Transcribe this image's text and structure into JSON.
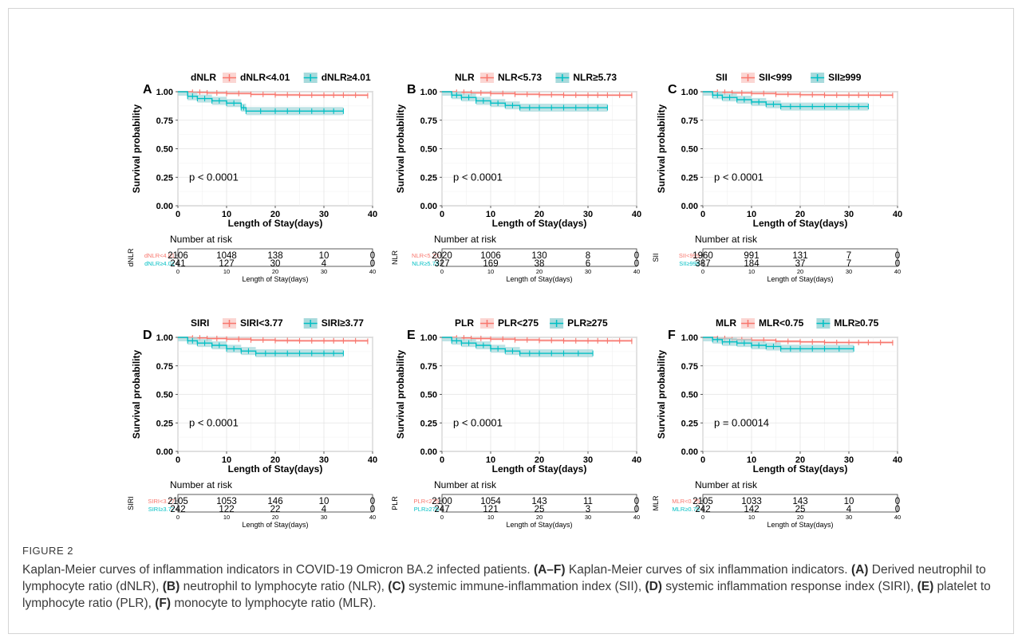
{
  "colors": {
    "group1": "#F8766D",
    "group2": "#00BFC4",
    "group2_fill": "#A8DADC"
  },
  "chart_data": [
    {
      "panel": "A",
      "type": "line",
      "legend_title": "dNLR",
      "series": [
        {
          "name": "dNLR<4.01",
          "x": [
            0,
            3,
            6,
            10,
            15,
            20,
            25,
            30,
            34,
            39
          ],
          "y": [
            1.0,
            0.995,
            0.99,
            0.985,
            0.977,
            0.972,
            0.97,
            0.97,
            0.97,
            0.965
          ]
        },
        {
          "name": "dNLR≥4.01",
          "x": [
            0,
            2,
            4,
            7,
            10,
            13,
            14,
            20,
            25,
            30,
            34
          ],
          "y": [
            1.0,
            0.96,
            0.94,
            0.92,
            0.9,
            0.86,
            0.83,
            0.83,
            0.83,
            0.83,
            0.83
          ]
        }
      ],
      "p_value": "p < 0.0001",
      "xlabel": "Length of Stay(days)",
      "ylabel": "Survival probability",
      "xlim": [
        0,
        40
      ],
      "ylim": [
        0,
        1
      ],
      "xticks": [
        "0",
        "10",
        "20",
        "30",
        "40"
      ],
      "yticks": [
        "0.00",
        "0.25",
        "0.50",
        "0.75",
        "1.00"
      ],
      "risk_table": {
        "title": "Number at risk",
        "ylabel": "dNLR",
        "rows": [
          {
            "label": "dNLR<4.01",
            "values": [
              "2106",
              "1048",
              "138",
              "10",
              "0"
            ]
          },
          {
            "label": "dNLR≥4.01",
            "values": [
              "241",
              "127",
              "30",
              "4",
              "0"
            ]
          }
        ],
        "xlabel": "Length of Stay(days)",
        "xticks": [
          "0",
          "10",
          "20",
          "30",
          "40"
        ]
      }
    },
    {
      "panel": "B",
      "type": "line",
      "legend_title": "NLR",
      "series": [
        {
          "name": "NLR<5.73",
          "x": [
            0,
            3,
            6,
            10,
            15,
            20,
            25,
            30,
            34,
            39
          ],
          "y": [
            1.0,
            0.995,
            0.99,
            0.985,
            0.978,
            0.973,
            0.97,
            0.97,
            0.97,
            0.967
          ]
        },
        {
          "name": "NLR≥5.73",
          "x": [
            0,
            2,
            4,
            7,
            10,
            13,
            16,
            20,
            25,
            30,
            34
          ],
          "y": [
            1.0,
            0.97,
            0.95,
            0.92,
            0.9,
            0.88,
            0.86,
            0.86,
            0.86,
            0.86,
            0.86
          ]
        }
      ],
      "p_value": "p < 0.0001",
      "xlabel": "Length of Stay(days)",
      "ylabel": "Survival probability",
      "xlim": [
        0,
        40
      ],
      "ylim": [
        0,
        1
      ],
      "xticks": [
        "0",
        "10",
        "20",
        "30",
        "40"
      ],
      "yticks": [
        "0.00",
        "0.25",
        "0.50",
        "0.75",
        "1.00"
      ],
      "risk_table": {
        "title": "Number at risk",
        "ylabel": "NLR",
        "rows": [
          {
            "label": "NLR<5.73",
            "values": [
              "2020",
              "1006",
              "130",
              "8",
              "0"
            ]
          },
          {
            "label": "NLR≥5.73",
            "values": [
              "327",
              "169",
              "38",
              "6",
              "0"
            ]
          }
        ],
        "xlabel": "Length of Stay(days)",
        "xticks": [
          "0",
          "10",
          "20",
          "30",
          "40"
        ]
      }
    },
    {
      "panel": "C",
      "type": "line",
      "legend_title": "SII",
      "series": [
        {
          "name": "SII<999",
          "x": [
            0,
            3,
            6,
            10,
            15,
            20,
            25,
            30,
            34,
            39
          ],
          "y": [
            1.0,
            0.995,
            0.99,
            0.985,
            0.978,
            0.973,
            0.97,
            0.97,
            0.97,
            0.967
          ]
        },
        {
          "name": "SII≥999",
          "x": [
            0,
            2,
            4,
            7,
            10,
            13,
            16,
            20,
            25,
            30,
            34
          ],
          "y": [
            1.0,
            0.97,
            0.95,
            0.93,
            0.91,
            0.89,
            0.87,
            0.87,
            0.87,
            0.87,
            0.87
          ]
        }
      ],
      "p_value": "p < 0.0001",
      "xlabel": "Length of Stay(days)",
      "ylabel": "Survival probability",
      "xlim": [
        0,
        40
      ],
      "ylim": [
        0,
        1
      ],
      "xticks": [
        "0",
        "10",
        "20",
        "30",
        "40"
      ],
      "yticks": [
        "0.00",
        "0.25",
        "0.50",
        "0.75",
        "1.00"
      ],
      "risk_table": {
        "title": "Number at risk",
        "ylabel": "SII",
        "rows": [
          {
            "label": "SII<999",
            "values": [
              "1960",
              "991",
              "131",
              "7",
              "0"
            ]
          },
          {
            "label": "SII≥999",
            "values": [
              "387",
              "184",
              "37",
              "7",
              "0"
            ]
          }
        ],
        "xlabel": "Length of Stay(days)",
        "xticks": [
          "0",
          "10",
          "20",
          "30",
          "40"
        ]
      }
    },
    {
      "panel": "D",
      "type": "line",
      "legend_title": "SIRI",
      "series": [
        {
          "name": "SIRI<3.77",
          "x": [
            0,
            3,
            6,
            10,
            15,
            20,
            25,
            30,
            34,
            39
          ],
          "y": [
            1.0,
            0.995,
            0.99,
            0.985,
            0.977,
            0.972,
            0.97,
            0.97,
            0.97,
            0.965
          ]
        },
        {
          "name": "SIRI≥3.77",
          "x": [
            0,
            2,
            4,
            7,
            10,
            13,
            16,
            20,
            25,
            30,
            34
          ],
          "y": [
            1.0,
            0.97,
            0.95,
            0.93,
            0.9,
            0.88,
            0.86,
            0.86,
            0.86,
            0.86,
            0.86
          ]
        }
      ],
      "p_value": "p < 0.0001",
      "xlabel": "Length of Stay(days)",
      "ylabel": "Survival probability",
      "xlim": [
        0,
        40
      ],
      "ylim": [
        0,
        1
      ],
      "xticks": [
        "0",
        "10",
        "20",
        "30",
        "40"
      ],
      "yticks": [
        "0.00",
        "0.25",
        "0.50",
        "0.75",
        "1.00"
      ],
      "risk_table": {
        "title": "Number at risk",
        "ylabel": "SIRI",
        "rows": [
          {
            "label": "SIRI<3.77",
            "values": [
              "2105",
              "1053",
              "146",
              "10",
              "0"
            ]
          },
          {
            "label": "SIRI≥3.77",
            "values": [
              "242",
              "122",
              "22",
              "4",
              "0"
            ]
          }
        ],
        "xlabel": "Length of Stay(days)",
        "xticks": [
          "0",
          "10",
          "20",
          "30",
          "40"
        ]
      }
    },
    {
      "panel": "E",
      "type": "line",
      "legend_title": "PLR",
      "series": [
        {
          "name": "PLR<275",
          "x": [
            0,
            3,
            6,
            10,
            15,
            20,
            25,
            30,
            34,
            39
          ],
          "y": [
            1.0,
            0.995,
            0.99,
            0.985,
            0.978,
            0.973,
            0.97,
            0.97,
            0.97,
            0.966
          ]
        },
        {
          "name": "PLR≥275",
          "x": [
            0,
            2,
            4,
            7,
            10,
            13,
            16,
            20,
            25,
            31
          ],
          "y": [
            1.0,
            0.97,
            0.95,
            0.93,
            0.9,
            0.88,
            0.86,
            0.86,
            0.86,
            0.86
          ]
        }
      ],
      "p_value": "p < 0.0001",
      "xlabel": "Length of Stay(days)",
      "ylabel": "Survival probability",
      "xlim": [
        0,
        40
      ],
      "ylim": [
        0,
        1
      ],
      "xticks": [
        "0",
        "10",
        "20",
        "30",
        "40"
      ],
      "yticks": [
        "0.00",
        "0.25",
        "0.50",
        "0.75",
        "1.00"
      ],
      "risk_table": {
        "title": "Number at risk",
        "ylabel": "PLR",
        "rows": [
          {
            "label": "PLR<275",
            "values": [
              "2100",
              "1054",
              "143",
              "11",
              "0"
            ]
          },
          {
            "label": "PLR≥275",
            "values": [
              "247",
              "121",
              "25",
              "3",
              "0"
            ]
          }
        ],
        "xlabel": "Length of Stay(days)",
        "xticks": [
          "0",
          "10",
          "20",
          "30",
          "40"
        ]
      }
    },
    {
      "panel": "F",
      "type": "line",
      "legend_title": "MLR",
      "series": [
        {
          "name": "MLR<0.75",
          "x": [
            0,
            3,
            6,
            10,
            15,
            20,
            25,
            30,
            34,
            39
          ],
          "y": [
            1.0,
            0.99,
            0.98,
            0.975,
            0.965,
            0.96,
            0.955,
            0.955,
            0.955,
            0.952
          ]
        },
        {
          "name": "MLR≥0.75",
          "x": [
            0,
            2,
            4,
            7,
            10,
            13,
            16,
            20,
            25,
            31
          ],
          "y": [
            1.0,
            0.98,
            0.96,
            0.95,
            0.93,
            0.92,
            0.9,
            0.9,
            0.9,
            0.9
          ]
        }
      ],
      "p_value": "p = 0.00014",
      "xlabel": "Length of Stay(days)",
      "ylabel": "Survival probability",
      "xlim": [
        0,
        40
      ],
      "ylim": [
        0,
        1
      ],
      "xticks": [
        "0",
        "10",
        "20",
        "30",
        "40"
      ],
      "yticks": [
        "0.00",
        "0.25",
        "0.50",
        "0.75",
        "1.00"
      ],
      "risk_table": {
        "title": "Number at risk",
        "ylabel": "MLR",
        "rows": [
          {
            "label": "MLR<0.75",
            "values": [
              "2105",
              "1033",
              "143",
              "10",
              "0"
            ]
          },
          {
            "label": "MLR≥0.75",
            "values": [
              "242",
              "142",
              "25",
              "4",
              "0"
            ]
          }
        ],
        "xlabel": "Length of Stay(days)",
        "xticks": [
          "0",
          "10",
          "20",
          "30",
          "40"
        ]
      }
    }
  ],
  "caption": {
    "label": "FIGURE 2",
    "parts": [
      {
        "t": "Kaplan-Meier curves of inflammation indicators in COVID-19 Omicron BA.2 infected patients. ",
        "b": false
      },
      {
        "t": "(A–F)",
        "b": true
      },
      {
        "t": " Kaplan-Meier curves of six inflammation indicators. ",
        "b": false
      },
      {
        "t": "(A)",
        "b": true
      },
      {
        "t": " Derived neutrophil to lymphocyte ratio (dNLR), ",
        "b": false
      },
      {
        "t": "(B)",
        "b": true
      },
      {
        "t": " neutrophil to lymphocyte ratio (NLR), ",
        "b": false
      },
      {
        "t": "(C)",
        "b": true
      },
      {
        "t": " systemic immune-inflammation index (SII), ",
        "b": false
      },
      {
        "t": "(D)",
        "b": true
      },
      {
        "t": " systemic inflammation response index (SIRI), ",
        "b": false
      },
      {
        "t": "(E)",
        "b": true
      },
      {
        "t": " platelet to lymphocyte ratio (PLR), ",
        "b": false
      },
      {
        "t": "(F)",
        "b": true
      },
      {
        "t": " monocyte to lymphocyte ratio (MLR).",
        "b": false
      }
    ]
  }
}
